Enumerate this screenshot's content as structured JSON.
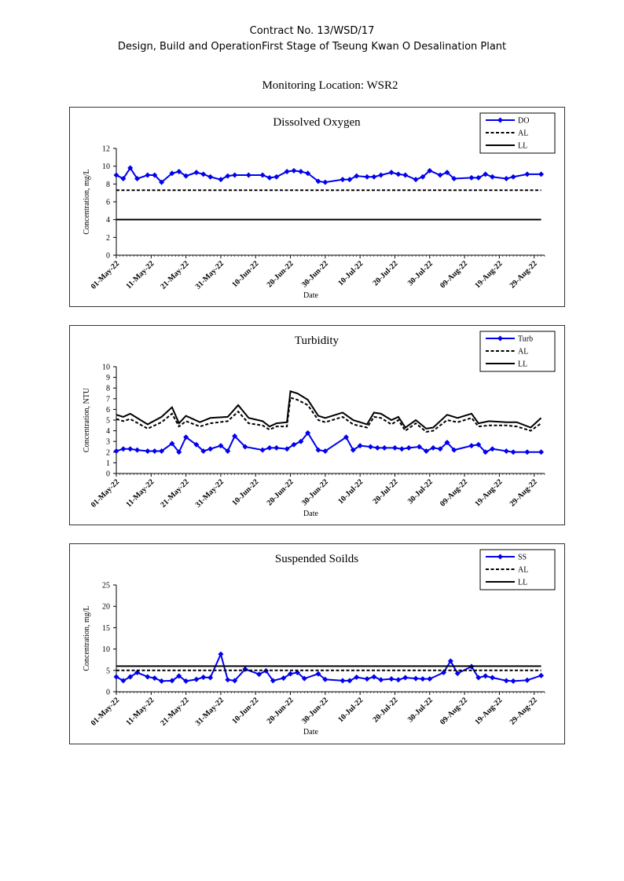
{
  "header": {
    "line1": "Contract No. 13/WSD/17",
    "line2": "Design, Build and OperationFirst Stage  of Tseung Kwan O Desalination Plant",
    "location": "Monitoring Location: WSR2"
  },
  "colors": {
    "series": "#0000ee",
    "limits": "#000000"
  },
  "chart_data": [
    {
      "type": "line",
      "title": "Dissolved Oxygen",
      "xlabel": "Date",
      "ylabel": "Concentration, mg/L",
      "ylim": [
        0,
        12
      ],
      "yticks": [
        0,
        2,
        4,
        6,
        8,
        10,
        12
      ],
      "xlim": [
        "2022-05-01",
        "2022-09-01"
      ],
      "xticks": [
        "01-May-22",
        "11-May-22",
        "21-May-22",
        "31-May-22",
        "10-Jun-22",
        "20-Jun-22",
        "30-Jun-22",
        "10-Jul-22",
        "20-Jul-22",
        "30-Jul-22",
        "09-Aug-22",
        "19-Aug-22",
        "29-Aug-22"
      ],
      "legend_position": "top-right",
      "series": [
        {
          "name": "DO",
          "style": "marker-line",
          "x": [
            "2022-05-01",
            "2022-05-03",
            "2022-05-05",
            "2022-05-07",
            "2022-05-10",
            "2022-05-12",
            "2022-05-14",
            "2022-05-17",
            "2022-05-19",
            "2022-05-21",
            "2022-05-24",
            "2022-05-26",
            "2022-05-28",
            "2022-05-31",
            "2022-06-02",
            "2022-06-04",
            "2022-06-08",
            "2022-06-12",
            "2022-06-14",
            "2022-06-16",
            "2022-06-19",
            "2022-06-21",
            "2022-06-23",
            "2022-06-25",
            "2022-06-28",
            "2022-06-30",
            "2022-07-05",
            "2022-07-07",
            "2022-07-09",
            "2022-07-12",
            "2022-07-14",
            "2022-07-16",
            "2022-07-19",
            "2022-07-21",
            "2022-07-23",
            "2022-07-26",
            "2022-07-28",
            "2022-07-30",
            "2022-08-02",
            "2022-08-04",
            "2022-08-06",
            "2022-08-11",
            "2022-08-13",
            "2022-08-15",
            "2022-08-17",
            "2022-08-21",
            "2022-08-23",
            "2022-08-27",
            "2022-08-31"
          ],
          "values": [
            9.0,
            8.6,
            9.8,
            8.6,
            9.0,
            9.0,
            8.2,
            9.2,
            9.4,
            8.9,
            9.3,
            9.1,
            8.8,
            8.5,
            8.9,
            9.0,
            9.0,
            9.0,
            8.7,
            8.8,
            9.4,
            9.5,
            9.4,
            9.2,
            8.3,
            8.2,
            8.5,
            8.5,
            8.9,
            8.8,
            8.8,
            9.0,
            9.3,
            9.1,
            9.0,
            8.5,
            8.8,
            9.5,
            9.0,
            9.3,
            8.6,
            8.7,
            8.7,
            9.1,
            8.8,
            8.6,
            8.8,
            9.1,
            9.1
          ]
        },
        {
          "name": "AL",
          "style": "dashed",
          "x": [
            "2022-05-01",
            "2022-08-31"
          ],
          "values": [
            7.3,
            7.3
          ]
        },
        {
          "name": "LL",
          "style": "solid",
          "x": [
            "2022-05-01",
            "2022-08-31"
          ],
          "values": [
            4,
            4
          ]
        }
      ]
    },
    {
      "type": "line",
      "title": "Turbidity",
      "xlabel": "Date",
      "ylabel": "Concentration, NTU",
      "ylim": [
        0,
        10
      ],
      "yticks": [
        0,
        1,
        2,
        3,
        4,
        5,
        6,
        7,
        8,
        9,
        10
      ],
      "xlim": [
        "2022-05-01",
        "2022-09-01"
      ],
      "xticks": [
        "01-May-22",
        "11-May-22",
        "21-May-22",
        "31-May-22",
        "10-Jun-22",
        "20-Jun-22",
        "30-Jun-22",
        "10-Jul-22",
        "20-Jul-22",
        "30-Jul-22",
        "09-Aug-22",
        "19-Aug-22",
        "29-Aug-22"
      ],
      "legend_position": "top-right",
      "series": [
        {
          "name": "Turb",
          "style": "marker-line",
          "x": [
            "2022-05-01",
            "2022-05-03",
            "2022-05-05",
            "2022-05-07",
            "2022-05-10",
            "2022-05-12",
            "2022-05-14",
            "2022-05-17",
            "2022-05-19",
            "2022-05-21",
            "2022-05-24",
            "2022-05-26",
            "2022-05-28",
            "2022-05-31",
            "2022-06-02",
            "2022-06-04",
            "2022-06-07",
            "2022-06-12",
            "2022-06-14",
            "2022-06-16",
            "2022-06-19",
            "2022-06-21",
            "2022-06-23",
            "2022-06-25",
            "2022-06-28",
            "2022-06-30",
            "2022-07-06",
            "2022-07-08",
            "2022-07-10",
            "2022-07-13",
            "2022-07-15",
            "2022-07-17",
            "2022-07-20",
            "2022-07-22",
            "2022-07-24",
            "2022-07-27",
            "2022-07-29",
            "2022-07-31",
            "2022-08-02",
            "2022-08-04",
            "2022-08-06",
            "2022-08-11",
            "2022-08-13",
            "2022-08-15",
            "2022-08-17",
            "2022-08-21",
            "2022-08-23",
            "2022-08-27",
            "2022-08-31"
          ],
          "values": [
            2.1,
            2.3,
            2.3,
            2.2,
            2.1,
            2.1,
            2.1,
            2.8,
            2.0,
            3.4,
            2.7,
            2.1,
            2.3,
            2.6,
            2.1,
            3.5,
            2.5,
            2.2,
            2.4,
            2.4,
            2.3,
            2.7,
            3.0,
            3.8,
            2.2,
            2.1,
            3.4,
            2.2,
            2.6,
            2.5,
            2.4,
            2.4,
            2.4,
            2.3,
            2.4,
            2.5,
            2.1,
            2.4,
            2.3,
            2.9,
            2.2,
            2.6,
            2.7,
            2.0,
            2.3,
            2.1,
            2.0,
            2.0,
            2.0
          ]
        },
        {
          "name": "AL",
          "style": "dashed",
          "x": [
            "2022-05-01",
            "2022-05-03",
            "2022-05-05",
            "2022-05-10",
            "2022-05-14",
            "2022-05-17",
            "2022-05-19",
            "2022-05-21",
            "2022-05-25",
            "2022-05-28",
            "2022-06-02",
            "2022-06-05",
            "2022-06-08",
            "2022-06-12",
            "2022-06-14",
            "2022-06-16",
            "2022-06-19",
            "2022-06-20",
            "2022-06-22",
            "2022-06-25",
            "2022-06-28",
            "2022-06-30",
            "2022-07-05",
            "2022-07-08",
            "2022-07-12",
            "2022-07-14",
            "2022-07-16",
            "2022-07-19",
            "2022-07-21",
            "2022-07-23",
            "2022-07-26",
            "2022-07-29",
            "2022-07-31",
            "2022-08-04",
            "2022-08-07",
            "2022-08-09",
            "2022-08-11",
            "2022-08-13",
            "2022-08-16",
            "2022-08-21",
            "2022-08-24",
            "2022-08-28",
            "2022-08-31"
          ],
          "values": [
            5.1,
            4.9,
            5.1,
            4.2,
            4.8,
            5.6,
            4.4,
            4.9,
            4.4,
            4.7,
            4.9,
            5.8,
            4.7,
            4.5,
            4.1,
            4.4,
            4.4,
            7.1,
            6.9,
            6.4,
            5.0,
            4.8,
            5.3,
            4.6,
            4.3,
            5.3,
            5.2,
            4.6,
            5.0,
            4.0,
            4.7,
            3.9,
            4.0,
            5.0,
            4.8,
            5.0,
            5.2,
            4.4,
            4.5,
            4.5,
            4.4,
            4.0,
            4.7
          ]
        },
        {
          "name": "LL",
          "style": "solid",
          "x": [
            "2022-05-01",
            "2022-05-03",
            "2022-05-05",
            "2022-05-10",
            "2022-05-14",
            "2022-05-17",
            "2022-05-19",
            "2022-05-21",
            "2022-05-25",
            "2022-05-28",
            "2022-06-02",
            "2022-06-05",
            "2022-06-08",
            "2022-06-12",
            "2022-06-14",
            "2022-06-16",
            "2022-06-19",
            "2022-06-20",
            "2022-06-22",
            "2022-06-25",
            "2022-06-28",
            "2022-06-30",
            "2022-07-05",
            "2022-07-08",
            "2022-07-12",
            "2022-07-14",
            "2022-07-16",
            "2022-07-19",
            "2022-07-21",
            "2022-07-23",
            "2022-07-26",
            "2022-07-29",
            "2022-07-31",
            "2022-08-04",
            "2022-08-07",
            "2022-08-09",
            "2022-08-11",
            "2022-08-13",
            "2022-08-16",
            "2022-08-21",
            "2022-08-24",
            "2022-08-28",
            "2022-08-31"
          ],
          "values": [
            5.5,
            5.3,
            5.6,
            4.6,
            5.3,
            6.2,
            4.7,
            5.4,
            4.8,
            5.2,
            5.3,
            6.4,
            5.2,
            4.9,
            4.4,
            4.7,
            4.8,
            7.7,
            7.5,
            6.9,
            5.4,
            5.2,
            5.7,
            5.0,
            4.6,
            5.7,
            5.6,
            5.0,
            5.3,
            4.3,
            5.0,
            4.2,
            4.3,
            5.5,
            5.2,
            5.4,
            5.6,
            4.7,
            4.9,
            4.8,
            4.8,
            4.3,
            5.2
          ]
        }
      ]
    },
    {
      "type": "line",
      "title": "Suspended Soilds",
      "xlabel": "Date",
      "ylabel": "Concentration, mg/L",
      "ylim": [
        0,
        25
      ],
      "yticks": [
        0,
        5,
        10,
        15,
        20,
        25
      ],
      "xlim": [
        "2022-05-01",
        "2022-09-01"
      ],
      "xticks": [
        "01-May-22",
        "11-May-22",
        "21-May-22",
        "31-May-22",
        "10-Jun-22",
        "20-Jun-22",
        "30-Jun-22",
        "10-Jul-22",
        "20-Jul-22",
        "30-Jul-22",
        "09-Aug-22",
        "19-Aug-22",
        "29-Aug-22"
      ],
      "legend_position": "top-right",
      "series": [
        {
          "name": "SS",
          "style": "marker-line",
          "x": [
            "2022-05-01",
            "2022-05-03",
            "2022-05-05",
            "2022-05-07",
            "2022-05-10",
            "2022-05-12",
            "2022-05-14",
            "2022-05-17",
            "2022-05-19",
            "2022-05-21",
            "2022-05-24",
            "2022-05-26",
            "2022-05-28",
            "2022-05-31",
            "2022-06-02",
            "2022-06-04",
            "2022-06-07",
            "2022-06-11",
            "2022-06-13",
            "2022-06-15",
            "2022-06-18",
            "2022-06-20",
            "2022-06-22",
            "2022-06-24",
            "2022-06-28",
            "2022-06-30",
            "2022-07-05",
            "2022-07-07",
            "2022-07-09",
            "2022-07-12",
            "2022-07-14",
            "2022-07-16",
            "2022-07-19",
            "2022-07-21",
            "2022-07-23",
            "2022-07-26",
            "2022-07-28",
            "2022-07-30",
            "2022-08-03",
            "2022-08-05",
            "2022-08-07",
            "2022-08-11",
            "2022-08-13",
            "2022-08-15",
            "2022-08-17",
            "2022-08-21",
            "2022-08-23",
            "2022-08-27",
            "2022-08-31"
          ],
          "values": [
            3.5,
            2.6,
            3.5,
            4.5,
            3.5,
            3.2,
            2.5,
            2.6,
            3.7,
            2.5,
            2.9,
            3.4,
            3.3,
            8.8,
            2.8,
            2.6,
            5.3,
            4.1,
            4.9,
            2.6,
            3.2,
            4.2,
            4.5,
            3.1,
            4.2,
            2.9,
            2.6,
            2.6,
            3.4,
            3.0,
            3.5,
            2.8,
            3.0,
            2.8,
            3.3,
            3.1,
            3.0,
            3.0,
            4.5,
            7.2,
            4.3,
            5.9,
            3.3,
            3.7,
            3.3,
            2.6,
            2.5,
            2.7,
            3.8
          ]
        },
        {
          "name": "AL",
          "style": "dashed",
          "x": [
            "2022-05-01",
            "2022-08-31"
          ],
          "values": [
            5,
            5
          ]
        },
        {
          "name": "LL",
          "style": "solid",
          "x": [
            "2022-05-01",
            "2022-08-31"
          ],
          "values": [
            6,
            6
          ]
        }
      ]
    }
  ]
}
